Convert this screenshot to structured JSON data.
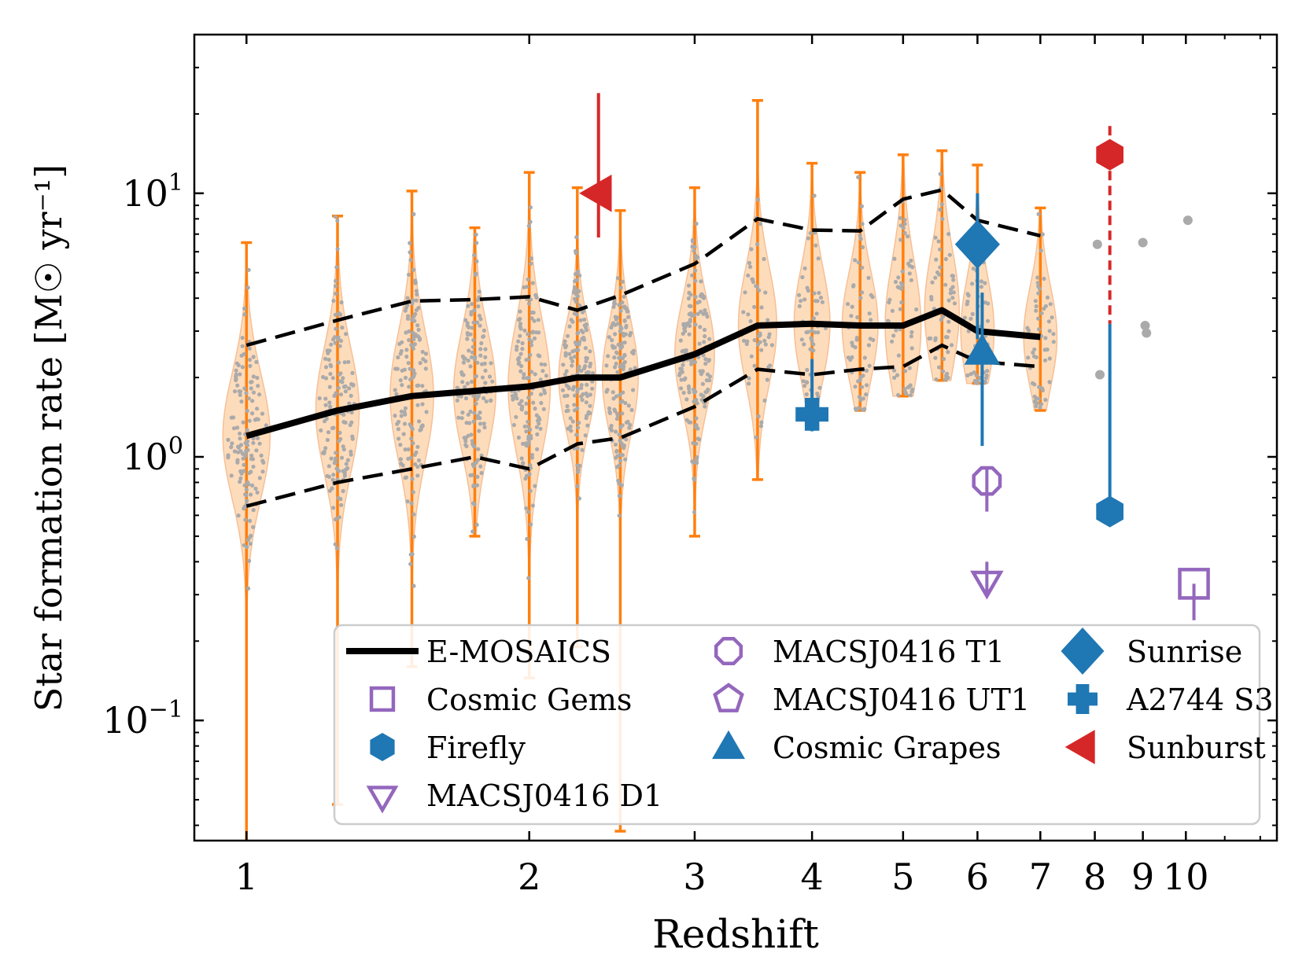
{
  "chart_data": {
    "type": "scatter",
    "xlabel": "Redshift",
    "ylabel": "Star formation rate [M☉ yr⁻¹]",
    "xscale": "log",
    "yscale": "log",
    "xlim": [
      0.88,
      12.5
    ],
    "ylim": [
      0.035,
      40
    ],
    "x_ticks": [
      {
        "value": 1,
        "label": "1"
      },
      {
        "value": 2,
        "label": "2"
      },
      {
        "value": 3,
        "label": "3"
      },
      {
        "value": 4,
        "label": "4"
      },
      {
        "value": 5,
        "label": "5"
      },
      {
        "value": 6,
        "label": "6"
      },
      {
        "value": 7,
        "label": "7"
      },
      {
        "value": 8,
        "label": "8"
      },
      {
        "value": 9,
        "label": "9"
      },
      {
        "value": 10,
        "label": "10"
      }
    ],
    "y_ticks": [
      {
        "value": 0.1,
        "base": "10",
        "exp": "−1"
      },
      {
        "value": 1,
        "base": "10",
        "exp": "0"
      },
      {
        "value": 10,
        "base": "10",
        "exp": "1"
      }
    ],
    "emosaics": {
      "name": "E-MOSAICS",
      "z": [
        1.0,
        1.25,
        1.5,
        1.75,
        2.0,
        2.25,
        2.5,
        3.0,
        3.5,
        4.0,
        4.5,
        5.0,
        5.5,
        6.0,
        7.0
      ],
      "median": [
        1.2,
        1.5,
        1.7,
        1.78,
        1.85,
        2.0,
        2.0,
        2.45,
        3.15,
        3.2,
        3.15,
        3.15,
        3.6,
        3.0,
        2.85
      ],
      "upper": [
        2.65,
        3.3,
        3.9,
        3.95,
        4.05,
        3.6,
        4.1,
        5.4,
        8.0,
        7.25,
        7.2,
        9.5,
        10.3,
        7.9,
        6.9
      ],
      "lower": [
        0.65,
        0.8,
        0.9,
        1.0,
        0.9,
        1.12,
        1.18,
        1.55,
        2.15,
        2.05,
        2.15,
        2.2,
        2.65,
        2.3,
        2.2
      ],
      "range_min": [
        0.035,
        0.048,
        0.16,
        0.5,
        0.145,
        0.19,
        0.038,
        0.5,
        0.82,
        1.3,
        1.5,
        1.7,
        1.95,
        1.9,
        1.5
      ],
      "range_max": [
        6.5,
        8.2,
        10.2,
        7.4,
        12.0,
        10.5,
        8.6,
        10.5,
        22.5,
        13.0,
        12.0,
        14.0,
        14.5,
        12.8,
        8.8
      ],
      "violin_width": [
        1.0,
        0.85,
        0.85,
        0.8,
        0.8,
        0.6,
        0.55,
        0.7,
        0.65,
        0.55,
        0.55,
        0.55,
        0.5,
        0.45,
        0.45
      ]
    },
    "individual_points": [
      {
        "z": 8.05,
        "sfr": 6.4
      },
      {
        "z": 8.1,
        "sfr": 2.05
      },
      {
        "z": 9.0,
        "sfr": 6.5
      },
      {
        "z": 9.05,
        "sfr": 3.15
      },
      {
        "z": 9.08,
        "sfr": 2.95
      },
      {
        "z": 10.05,
        "sfr": 7.9
      }
    ],
    "observations": [
      {
        "name": "Cosmic Gems",
        "marker": "square",
        "filled": false,
        "color": "#9467bd",
        "z": 10.2,
        "sfr": 0.33,
        "yerr_low": 0.24,
        "yerr_high": null
      },
      {
        "name": "Firefly",
        "marker": "hexagon",
        "filled": true,
        "color": "#1f77b4",
        "z": 8.3,
        "sfr": 0.62,
        "yerr_low": null,
        "yerr_high": 3.2
      },
      {
        "name": "MACSJ0416 D1",
        "marker": "triangle-down",
        "filled": false,
        "color": "#9467bd",
        "z": 6.14,
        "sfr": 0.34,
        "yerr_low": 0.3,
        "yerr_high": 0.4
      },
      {
        "name": "MACSJ0416 T1",
        "marker": "octagon",
        "filled": false,
        "color": "#9467bd",
        "z": 6.14,
        "sfr": 0.81,
        "yerr_low": 0.62,
        "yerr_high": 0.9
      },
      {
        "name": "MACSJ0416 UT1",
        "marker": "pentagon",
        "filled": false,
        "color": "#9467bd",
        "z": null,
        "sfr": null,
        "yerr_low": null,
        "yerr_high": null
      },
      {
        "name": "Cosmic Grapes",
        "marker": "triangle-up",
        "filled": true,
        "color": "#1f77b4",
        "z": 6.07,
        "sfr": 2.5,
        "yerr_low": 1.1,
        "yerr_high": 4.2
      },
      {
        "name": "Sunrise",
        "marker": "diamond",
        "filled": true,
        "color": "#1f77b4",
        "z": 6.0,
        "sfr": 6.4,
        "yerr_low": 2.8,
        "yerr_high": 10.0
      },
      {
        "name": "A2744 S3",
        "marker": "plus",
        "filled": true,
        "color": "#1f77b4",
        "z": 4.0,
        "sfr": 1.45,
        "yerr_low": 1.25,
        "yerr_high": 2.35
      },
      {
        "name": "Sunburst",
        "marker": "triangle-left",
        "filled": true,
        "color": "#d62728",
        "z": 2.37,
        "sfr": 10.0,
        "yerr_low": 6.8,
        "yerr_high": 24.0
      },
      {
        "name": "Sunburst (high)",
        "marker": "hexagon",
        "filled": true,
        "color": "#d62728",
        "z": 8.3,
        "sfr": 14.0,
        "yerr_low": 3.2,
        "yerr_high": 18.0,
        "dashed_err": true
      }
    ],
    "legend": {
      "location": "lower-right",
      "columns": [
        [
          "E-MOSAICS",
          "Cosmic Gems",
          "Firefly",
          "MACSJ0416 D1"
        ],
        [
          "MACSJ0416 T1",
          "MACSJ0416 UT1",
          "Cosmic Grapes"
        ],
        [
          "Sunrise",
          "A2744 S3",
          "Sunburst"
        ]
      ]
    },
    "colors": {
      "violin_fill": "#fdd9b5",
      "violin_edge": "#f6b98a",
      "range_bar": "#ff7f0e",
      "scatter": "#aaaaaa",
      "median": "#000000"
    }
  }
}
